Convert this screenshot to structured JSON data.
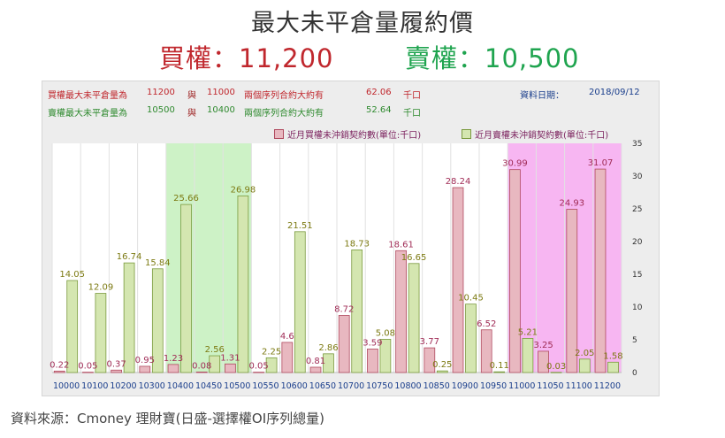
{
  "title": "最大未平倉量履約價",
  "subtitle": {
    "call": "買權：11,200",
    "put": "賣權：10,500"
  },
  "info": {
    "call_row": {
      "label": "買權最大未平倉量為",
      "strike1": "11200",
      "conj": "與",
      "strike2": "11000",
      "text": "兩個序列合約大約有",
      "value": "62.06",
      "unit": "千口"
    },
    "put_row": {
      "label": "賣權最大未平倉量為",
      "strike1": "10500",
      "conj": "與",
      "strike2": "10400",
      "text": "兩個序列合約大約有",
      "value": "52.64",
      "unit": "千口"
    },
    "date_label": "資料日期：",
    "date_value": "2018/09/12"
  },
  "source": "資料來源：Cmoney 理財寶(日盛-選擇權OI序列總量)",
  "colors": {
    "call_bar": "#e8b8c0",
    "call_bar_stroke": "#b04a5f",
    "put_bar": "#d4e6b0",
    "put_bar_stroke": "#7a9a3e",
    "call_label": "#a02c56",
    "put_label": "#7c7a12",
    "highlight_green": "#cdf2c6",
    "highlight_pink": "#f7b6f2",
    "axis_label": "#1a3e8c"
  },
  "chart_data": {
    "type": "bar",
    "categories": [
      "10000",
      "10100",
      "10200",
      "10300",
      "10400",
      "10450",
      "10500",
      "10550",
      "10600",
      "10650",
      "10700",
      "10750",
      "10800",
      "10850",
      "10900",
      "10950",
      "11000",
      "11050",
      "11100",
      "11200"
    ],
    "series": [
      {
        "name": "近月買權未沖銷契約數(單位:千口)",
        "values": [
          0.22,
          0.05,
          0.37,
          0.95,
          1.23,
          0.08,
          1.31,
          0.05,
          4.6,
          0.81,
          8.72,
          3.59,
          18.61,
          3.77,
          28.24,
          6.52,
          30.99,
          3.25,
          24.93,
          31.07
        ]
      },
      {
        "name": "近月賣權未沖銷契約數(單位:千口)",
        "values": [
          14.05,
          12.09,
          16.74,
          15.84,
          25.66,
          2.56,
          26.98,
          2.25,
          21.51,
          2.86,
          18.73,
          5.08,
          16.65,
          0.25,
          10.45,
          0.11,
          5.21,
          0.03,
          2.05,
          1.58
        ]
      }
    ],
    "ylim": [
      0,
      35
    ],
    "yticks": [
      0,
      5,
      10,
      15,
      20,
      25,
      30,
      35
    ],
    "grid": "vertical",
    "highlight_ranges": [
      {
        "from": "10400",
        "to": "10500",
        "color": "green"
      },
      {
        "from": "11000",
        "to": "11200",
        "color": "pink"
      }
    ]
  }
}
